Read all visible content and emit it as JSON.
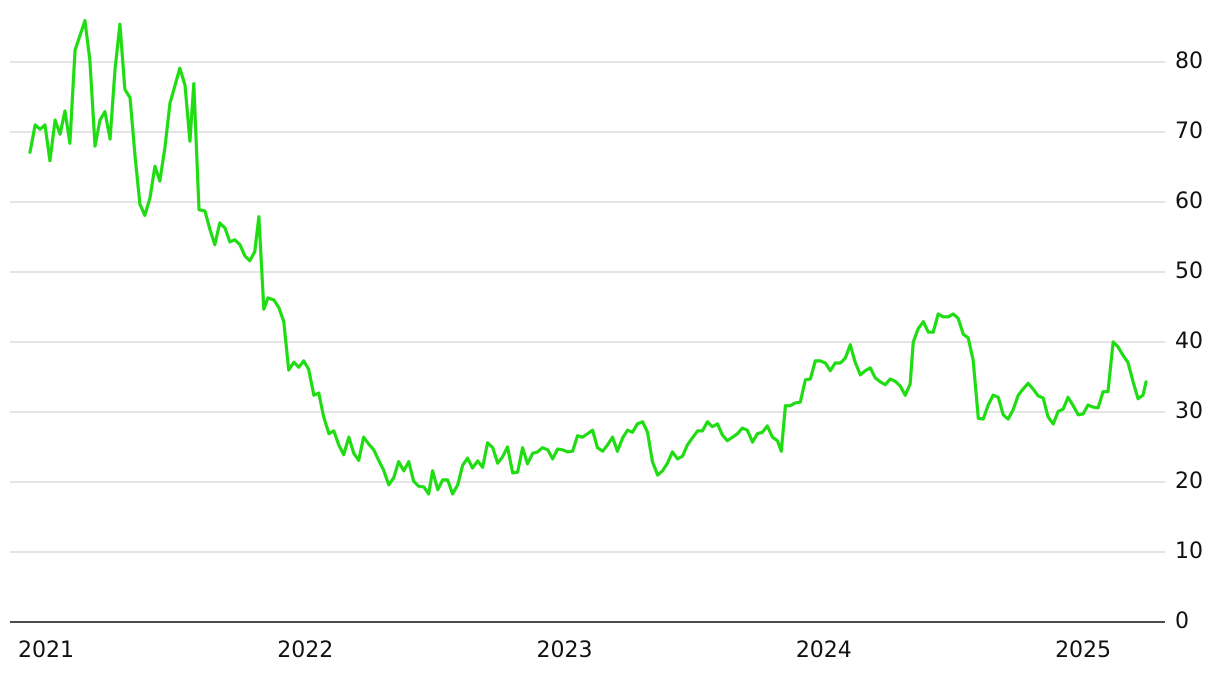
{
  "chart_data": {
    "type": "line",
    "color": "#1fdd12",
    "grid": true,
    "x": [
      2021.046,
      2021.066,
      2021.085,
      2021.104,
      2021.123,
      2021.143,
      2021.162,
      2021.181,
      2021.2,
      2021.22,
      2021.258,
      2021.277,
      2021.297,
      2021.316,
      2021.335,
      2021.355,
      2021.374,
      2021.393,
      2021.412,
      2021.432,
      2021.451,
      2021.47,
      2021.489,
      2021.509,
      2021.528,
      2021.547,
      2021.567,
      2021.586,
      2021.624,
      2021.644,
      2021.663,
      2021.678,
      2021.698,
      2021.721,
      2021.74,
      2021.759,
      2021.778,
      2021.798,
      2021.817,
      2021.836,
      2021.856,
      2021.875,
      2021.894,
      2021.913,
      2021.929,
      2021.948,
      2021.964,
      2021.987,
      2022.006,
      2022.025,
      2022.044,
      2022.064,
      2022.083,
      2022.102,
      2022.121,
      2022.141,
      2022.16,
      2022.179,
      2022.199,
      2022.218,
      2022.237,
      2022.256,
      2022.276,
      2022.295,
      2022.314,
      2022.333,
      2022.353,
      2022.372,
      2022.391,
      2022.41,
      2022.43,
      2022.449,
      2022.468,
      2022.488,
      2022.507,
      2022.526,
      2022.545,
      2022.565,
      2022.584,
      2022.599,
      2022.619,
      2022.638,
      2022.657,
      2022.676,
      2022.696,
      2022.715,
      2022.734,
      2022.753,
      2022.773,
      2022.792,
      2022.811,
      2022.831,
      2022.85,
      2022.869,
      2022.888,
      2022.908,
      2022.927,
      2022.946,
      2022.965,
      2022.985,
      2023.004,
      2023.023,
      2023.043,
      2023.062,
      2023.081,
      2023.1,
      2023.12,
      2023.139,
      2023.158,
      2023.177,
      2023.197,
      2023.216,
      2023.235,
      2023.255,
      2023.274,
      2023.293,
      2023.312,
      2023.332,
      2023.351,
      2023.37,
      2023.389,
      2023.409,
      2023.428,
      2023.447,
      2023.467,
      2023.486,
      2023.505,
      2023.524,
      2023.544,
      2023.563,
      2023.582,
      2023.601,
      2023.621,
      2023.64,
      2023.659,
      2023.678,
      2023.698,
      2023.717,
      2023.736,
      2023.756,
      2023.775,
      2023.794,
      2023.813,
      2023.833,
      2023.852,
      2023.871,
      2023.89,
      2023.91,
      2023.929,
      2023.944,
      2023.96,
      2023.979,
      2023.998,
      2024.017,
      2024.037,
      2024.056,
      2024.075,
      2024.094,
      2024.114,
      2024.133,
      2024.152,
      2024.172,
      2024.191,
      2024.21,
      2024.229,
      2024.249,
      2024.268,
      2024.287,
      2024.306,
      2024.326,
      2024.345,
      2024.364,
      2024.383,
      2024.403,
      2024.422,
      2024.441,
      2024.453,
      2024.472,
      2024.492,
      2024.511,
      2024.53,
      2024.549,
      2024.569,
      2024.588,
      2024.607,
      2024.626,
      2024.646,
      2024.665,
      2024.684,
      2024.704,
      2024.723,
      2024.742,
      2024.761,
      2024.781,
      2024.8,
      2024.819,
      2024.838,
      2024.858,
      2024.877,
      2024.896,
      2024.915,
      2024.935,
      2024.954,
      2024.973,
      2024.993,
      2025.012,
      2025.031,
      2025.05,
      2025.07,
      2025.089,
      2025.108,
      2025.127,
      2025.147,
      2025.166,
      2025.185,
      2025.204,
      2025.224,
      2025.243,
      2025.262,
      2025.281,
      2025.301,
      2025.32,
      2025.339,
      2025.351
    ],
    "values": [
      67.1,
      71,
      70.4,
      71,
      65.9,
      71.7,
      69.7,
      73,
      68.4,
      81.7,
      85.9,
      80.3,
      68,
      71.7,
      72.9,
      69,
      78.9,
      85.4,
      76.1,
      74.9,
      66.7,
      59.7,
      58.1,
      60.6,
      65.1,
      63,
      67.9,
      74.1,
      79.1,
      76.7,
      68.7,
      76.9,
      58.9,
      58.7,
      56.1,
      53.9,
      57,
      56.3,
      54.3,
      54.6,
      53.9,
      52.3,
      51.6,
      52.9,
      57.9,
      44.7,
      46.3,
      46,
      44.9,
      42.9,
      36,
      37.1,
      36.4,
      37.3,
      36.1,
      32.4,
      32.7,
      29.3,
      26.9,
      27.3,
      25.3,
      23.9,
      26.4,
      24.1,
      23.1,
      26.4,
      25.4,
      24.6,
      23.1,
      21.7,
      19.6,
      20.6,
      22.9,
      21.6,
      22.9,
      20.1,
      19.4,
      19.3,
      18.3,
      21.6,
      18.9,
      20.3,
      20.3,
      18.3,
      19.6,
      22.4,
      23.4,
      22,
      23,
      22.1,
      25.6,
      24.9,
      22.7,
      23.6,
      25,
      21.3,
      21.4,
      24.9,
      22.6,
      24.1,
      24.3,
      24.9,
      24.6,
      23.3,
      24.7,
      24.6,
      24.3,
      24.4,
      26.6,
      26.4,
      26.9,
      27.4,
      24.9,
      24.4,
      25.3,
      26.4,
      24.4,
      26.3,
      27.4,
      27.1,
      28.3,
      28.6,
      27.1,
      22.9,
      21,
      21.6,
      22.7,
      24.3,
      23.3,
      23.7,
      25.3,
      26.3,
      27.3,
      27.3,
      28.6,
      27.9,
      28.3,
      26.7,
      25.9,
      26.4,
      26.9,
      27.7,
      27.4,
      25.7,
      26.9,
      27.1,
      28,
      26.4,
      25.9,
      24.4,
      30.9,
      30.9,
      31.3,
      31.4,
      34.6,
      34.7,
      37.3,
      37.3,
      37,
      35.9,
      37,
      37,
      37.7,
      39.6,
      37.1,
      35.3,
      35.9,
      36.3,
      34.9,
      34.3,
      33.9,
      34.7,
      34.4,
      33.7,
      32.4,
      34,
      40,
      41.9,
      42.9,
      41.4,
      41.4,
      44,
      43.6,
      43.6,
      44,
      43.4,
      41.1,
      40.6,
      37.4,
      29.1,
      29,
      31,
      32.4,
      32.1,
      29.6,
      29,
      30.3,
      32.4,
      33.3,
      34.1,
      33.3,
      32.3,
      32,
      29.3,
      28.3,
      30.1,
      30.4,
      32.1,
      30.9,
      29.6,
      29.7,
      31,
      30.7,
      30.6,
      32.9,
      32.9,
      40,
      39.3,
      38.1,
      37.1,
      34.3,
      31.9,
      32.4,
      34.3
    ],
    "xlim": [
      2020.969,
      2025.424
    ],
    "xticks": [
      2021,
      2022,
      2023,
      2024,
      2025
    ],
    "ylim": [
      0,
      87
    ],
    "yticks": [
      0,
      10,
      20,
      30,
      40,
      50,
      60,
      70,
      80
    ]
  }
}
